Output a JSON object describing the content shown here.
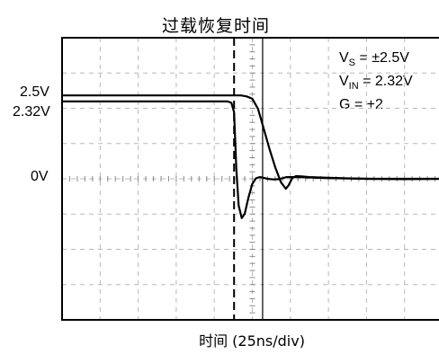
{
  "chart_data": {
    "type": "line",
    "title": "过载恢复时间",
    "xlabel": "时间  (25ns/div)",
    "ylabel": "",
    "y_tick_labels": [
      {
        "label": "2.5V",
        "value": 2.5
      },
      {
        "label": "2.32V",
        "value": 2.32
      },
      {
        "label": "0V",
        "value": 0
      }
    ],
    "ylim": [
      -4.23,
      4.23
    ],
    "xlim": [
      0,
      10
    ],
    "x_unit_per_div": "25ns/div",
    "grid": true,
    "grid_divisions": {
      "x": 10,
      "y": 8
    },
    "annotations": {
      "vs_main": "V",
      "vs_sub": "S",
      "vs_rest": " = ±2.5V",
      "vin_main": "V",
      "vin_sub": "IN",
      "vin_rest": " = 2.32V",
      "g": "G = +2"
    },
    "markers": [
      {
        "type": "vertical-dashed",
        "x": 4.52
      },
      {
        "type": "vertical-solid",
        "x": 5.27
      }
    ],
    "series": [
      {
        "x": [
          0,
          4.35,
          4.45,
          4.52,
          4.58,
          4.64,
          4.72,
          4.8,
          4.9,
          5.0,
          5.1,
          5.2,
          5.3,
          5.4,
          5.55,
          5.7,
          5.8,
          5.9,
          6.0,
          6.2,
          6.5,
          7,
          8,
          9,
          10
        ],
        "y": [
          2.32,
          2.32,
          2.28,
          2.0,
          0.3,
          -0.8,
          -1.18,
          -1.05,
          -0.55,
          -0.15,
          0.02,
          0.05,
          0.03,
          0.0,
          -0.02,
          -0.01,
          0.02,
          0.05,
          0.05,
          0.05,
          0.04,
          0.02,
          0.0,
          -0.01,
          0.0
        ]
      },
      {
        "x": [
          0,
          4.7,
          4.85,
          5.0,
          5.15,
          5.3,
          5.45,
          5.6,
          5.75,
          5.88,
          5.95,
          6.05,
          6.15,
          6.3,
          6.5,
          7,
          8,
          9,
          10
        ],
        "y": [
          2.5,
          2.5,
          2.47,
          2.4,
          2.1,
          1.5,
          0.9,
          0.35,
          -0.1,
          -0.3,
          -0.2,
          0.02,
          0.08,
          0.07,
          0.05,
          0.03,
          0.0,
          0.0,
          0.0
        ]
      }
    ]
  }
}
